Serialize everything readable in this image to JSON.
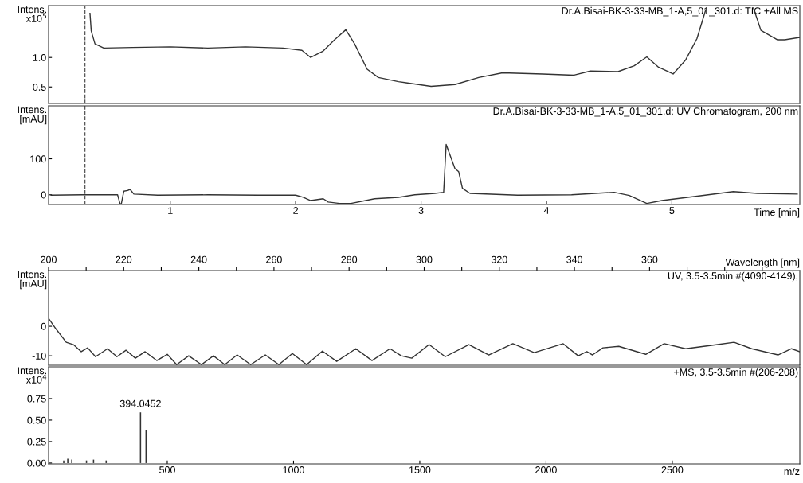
{
  "chart_data": [
    {
      "type": "line",
      "title": "Dr.A.Bisai-BK-3-33-MB_1-A,5_01_301.d: TIC +All MS",
      "ylabel": "Intens.\nx10$^{5}$",
      "xlim": [
        0.03,
        6.02
      ],
      "ylim": [
        0.22,
        1.88
      ],
      "yticks": [
        0.5,
        {
          "value": 1.0,
          "label": "1.0"
        }
      ],
      "tick_labels": "y",
      "grid": false,
      "ref_lines": [
        {
          "axis": "x",
          "value": 0.32,
          "color": "#555555",
          "line_style": "dashed"
        }
      ],
      "series": [
        {
          "color": "#333333",
          "x": [
            0.36,
            0.37,
            0.4,
            0.47,
            0.7,
            1.0,
            1.3,
            1.6,
            1.9,
            2.05,
            2.12,
            2.22,
            2.31,
            2.4,
            2.47,
            2.57,
            2.66,
            2.82,
            3.08,
            3.27,
            3.46,
            3.65,
            3.97,
            4.22,
            4.35,
            4.57,
            4.7,
            4.8,
            4.89,
            5.01,
            5.11,
            5.2,
            5.27,
            5.45,
            5.65,
            5.71,
            5.84,
            5.9,
            6.02
          ],
          "values": [
            1.75,
            1.45,
            1.23,
            1.16,
            1.17,
            1.18,
            1.16,
            1.18,
            1.16,
            1.12,
            1.0,
            1.11,
            1.3,
            1.47,
            1.23,
            0.8,
            0.66,
            0.59,
            0.51,
            0.54,
            0.66,
            0.74,
            0.72,
            0.7,
            0.77,
            0.76,
            0.86,
            1.01,
            0.84,
            0.72,
            0.96,
            1.32,
            1.81,
            null,
            1.84,
            1.46,
            1.3,
            1.3,
            1.34
          ]
        }
      ]
    },
    {
      "type": "line",
      "title": "Dr.A.Bisai-BK-3-33-MB_1-A,5_01_301.d: UV Chromatogram, 200 nm",
      "ylabel": "Intens.\n[mAU]",
      "xlabel": "Time [min]",
      "xlim": [
        0.03,
        6.02
      ],
      "xticks": [
        1,
        2,
        3,
        4,
        5
      ],
      "ylim": [
        -27,
        247
      ],
      "yticks": [
        0,
        100
      ],
      "grid": false,
      "ref_lines": [
        {
          "axis": "x",
          "value": 0.32,
          "color": "#555555",
          "line_style": "dashed"
        }
      ],
      "series": [
        {
          "color": "#333333",
          "x": [
            0.05,
            0.3,
            0.58,
            0.6,
            0.61,
            0.63,
            0.66,
            0.68,
            0.71,
            0.9,
            1.3,
            1.7,
            2.0,
            2.06,
            2.12,
            2.22,
            2.26,
            2.35,
            2.44,
            2.63,
            2.82,
            2.95,
            3.11,
            3.18,
            3.2,
            3.23,
            3.27,
            3.3,
            3.33,
            3.39,
            3.77,
            4.2,
            4.54,
            4.66,
            4.8,
            4.92,
            5.24,
            5.49,
            5.68,
            6.0
          ],
          "values": [
            -1,
            0,
            0,
            -25,
            -25,
            10,
            12,
            15,
            2,
            -1,
            0,
            -1,
            -1,
            -7,
            -16,
            -11,
            -20,
            -24,
            -24,
            -11,
            -7,
            0,
            4,
            7,
            140,
            111,
            73,
            64,
            18,
            4,
            -1,
            0,
            7,
            -2,
            -24,
            -16,
            -2,
            9,
            4,
            2
          ]
        }
      ]
    },
    {
      "type": "line",
      "title": "UV, 3.5-3.5min #(4090-4149),",
      "ylabel": "Intens.\n[mAU]",
      "xlabel": "Wavelength [nm]",
      "xlim": [
        200,
        400
      ],
      "xticks": [
        200,
        {
          "value": 210,
          "label": null
        },
        220,
        {
          "value": 230,
          "label": null
        },
        240,
        {
          "value": 250,
          "label": null
        },
        260,
        {
          "value": 270,
          "label": null
        },
        280,
        {
          "value": 290,
          "label": null
        },
        300,
        {
          "value": 310,
          "label": null
        },
        320,
        {
          "value": 330,
          "label": null
        },
        340,
        {
          "value": 350,
          "label": null
        },
        360,
        {
          "value": 370,
          "label": null
        },
        {
          "value": 380,
          "label": null
        },
        {
          "value": 390,
          "label": null
        }
      ],
      "ylim": [
        -13.2,
        18.9
      ],
      "yticks": [
        -10,
        0
      ],
      "grid": false,
      "series": [
        {
          "color": "#333333",
          "x": [
            200,
            201.9,
            204.7,
            206.6,
            208.7,
            210.4,
            212.5,
            215.7,
            218.2,
            220.6,
            223.1,
            225.7,
            228.8,
            231.6,
            234.1,
            237.3,
            240.7,
            243.9,
            246.9,
            250.2,
            253.8,
            257.7,
            261.3,
            264.9,
            268.7,
            272.9,
            276.7,
            281.8,
            286.1,
            290.9,
            293.9,
            296.7,
            301.3,
            305.6,
            311.9,
            317.2,
            323.6,
            329.3,
            337.0,
            341.0,
            343.3,
            344.8,
            347.6,
            351.8,
            359.0,
            363.9,
            369.6,
            378.1,
            382.5,
            387.2,
            394.2,
            397.8,
            400
          ],
          "values": [
            2.7,
            -0.8,
            -5.4,
            -6.2,
            -8.6,
            -7.3,
            -10.3,
            -7.6,
            -10.3,
            -8.1,
            -10.8,
            -8.6,
            -11.6,
            -9.5,
            -13.0,
            -10.0,
            -13.0,
            -10.0,
            -13.0,
            -9.7,
            -13.0,
            -9.7,
            -13.0,
            -9.2,
            -13.0,
            -8.4,
            -11.9,
            -7.6,
            -11.6,
            -7.6,
            -10.0,
            -10.8,
            -6.2,
            -10.3,
            -6.2,
            -9.7,
            -5.9,
            -8.9,
            -5.9,
            -10.0,
            -8.6,
            -9.7,
            -7.3,
            -6.8,
            -9.5,
            -5.9,
            -7.6,
            -6.2,
            -5.4,
            -7.6,
            -9.7,
            -7.6,
            -8.6
          ]
        }
      ]
    },
    {
      "type": "bar",
      "title": "+MS, 3.5-3.5min #(206-208)",
      "ylabel": "Intens.\nx10$^{4}$",
      "xlabel": "m/z",
      "xlim": [
        30,
        3005
      ],
      "xticks": [
        500,
        1000,
        1500,
        2000,
        2500
      ],
      "ylim": [
        -0.01,
        1.12
      ],
      "yticks": [
        {
          "value": 0,
          "label": "0.00"
        },
        {
          "value": 0.25,
          "label": "0.25"
        },
        {
          "value": 0.5,
          "label": "0.50"
        },
        {
          "value": 0.75,
          "label": "0.75"
        }
      ],
      "grid": false,
      "annotations": [
        {
          "text": "394.0452",
          "x": 394,
          "y": 0.59
        }
      ],
      "x": [
        90,
        106,
        122,
        180,
        208,
        258,
        281,
        394,
        416
      ],
      "values": [
        0.03,
        0.05,
        0.04,
        0.03,
        0.04,
        0.03,
        null,
        0.59,
        0.38
      ],
      "color": "#333333"
    }
  ]
}
